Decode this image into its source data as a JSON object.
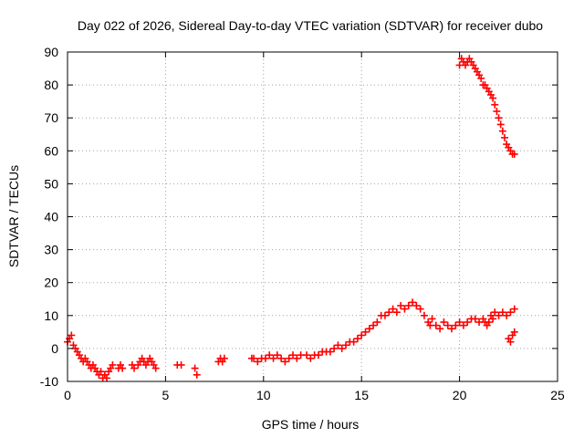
{
  "chart_data": {
    "type": "scatter",
    "title": "Day 022 of 2026, Sidereal Day-to-day VTEC variation (SDTVAR) for receiver dubo",
    "xlabel": "GPS time / hours",
    "ylabel": "SDTVAR / TECUs",
    "xlim": [
      0,
      25
    ],
    "ylim": [
      -10,
      90
    ],
    "xticks": [
      0,
      5,
      10,
      15,
      20,
      25
    ],
    "yticks": [
      -10,
      0,
      10,
      20,
      30,
      40,
      50,
      60,
      70,
      80,
      90
    ],
    "xtick_labels": [
      "0",
      "5",
      "10",
      "15",
      "20",
      "25"
    ],
    "ytick_labels": [
      "-10",
      "0",
      "10",
      "20",
      "30",
      "40",
      "50",
      "60",
      "70",
      "80",
      "90"
    ],
    "grid": true,
    "marker": "plus",
    "series_color": "#ff0000",
    "series": [
      {
        "name": "SDTVAR",
        "x": [
          0.0,
          0.1,
          0.2,
          0.3,
          0.4,
          0.5,
          0.6,
          0.7,
          0.8,
          0.9,
          1.0,
          1.1,
          1.2,
          1.3,
          1.4,
          1.5,
          1.6,
          1.7,
          1.8,
          1.9,
          2.0,
          2.1,
          2.2,
          2.3,
          2.6,
          2.7,
          2.8,
          3.3,
          3.4,
          3.6,
          3.7,
          3.8,
          3.9,
          4.0,
          4.1,
          4.2,
          4.3,
          4.4,
          4.5,
          5.6,
          5.8,
          6.5,
          6.6,
          7.7,
          7.8,
          7.9,
          8.0,
          9.4,
          9.5,
          9.7,
          9.9,
          10.1,
          10.3,
          10.5,
          10.7,
          10.9,
          11.1,
          11.3,
          11.5,
          11.7,
          11.9,
          12.2,
          12.4,
          12.6,
          12.8,
          13.0,
          13.2,
          13.4,
          13.6,
          13.8,
          14.0,
          14.2,
          14.4,
          14.6,
          14.8,
          15.0,
          15.2,
          15.4,
          15.6,
          15.8,
          16.0,
          16.2,
          16.4,
          16.6,
          16.8,
          17.0,
          17.2,
          17.4,
          17.6,
          17.8,
          18.0,
          18.2,
          18.4,
          18.5,
          18.6,
          18.8,
          19.0,
          19.2,
          19.4,
          19.6,
          19.8,
          20.0,
          20.2,
          20.4,
          20.6,
          20.8,
          21.0,
          21.2,
          21.3,
          21.4,
          21.5,
          21.6,
          21.7,
          21.8,
          22.0,
          22.2,
          22.4,
          22.6,
          22.8,
          22.5,
          22.6,
          22.7,
          22.8,
          20.0,
          20.1,
          20.2,
          20.3,
          20.4,
          20.5,
          20.6,
          20.7,
          20.8,
          20.9,
          21.0,
          21.1,
          21.2,
          21.3,
          21.4,
          21.5,
          21.6,
          21.7,
          21.8,
          21.9,
          22.0,
          22.1,
          22.2,
          22.3,
          22.4,
          22.5,
          22.6,
          22.7,
          22.8
        ],
        "y": [
          2,
          3,
          4,
          1,
          0,
          -1,
          -2,
          -3,
          -4,
          -3,
          -4,
          -5,
          -6,
          -5,
          -6,
          -7,
          -8,
          -7,
          -9,
          -8,
          -9,
          -7,
          -6,
          -5,
          -6,
          -5,
          -6,
          -5,
          -6,
          -5,
          -4,
          -3,
          -4,
          -5,
          -4,
          -3,
          -4,
          -5,
          -6,
          -5,
          -5,
          -6,
          -8,
          -4,
          -3,
          -4,
          -3,
          -3,
          -3,
          -4,
          -3,
          -3,
          -2,
          -3,
          -2,
          -3,
          -4,
          -3,
          -2,
          -3,
          -2,
          -2,
          -3,
          -2,
          -2,
          -1,
          -1,
          -1,
          0,
          1,
          0,
          1,
          2,
          2,
          3,
          4,
          5,
          6,
          7,
          8,
          10,
          10,
          11,
          12,
          11,
          13,
          12,
          13,
          14,
          13,
          12,
          10,
          8,
          7,
          9,
          7,
          6,
          8,
          7,
          6,
          7,
          8,
          7,
          8,
          9,
          9,
          8,
          9,
          8,
          7,
          8,
          10,
          9,
          11,
          10,
          11,
          10,
          11,
          12,
          3,
          2,
          4,
          5,
          86,
          88,
          87,
          86,
          87,
          88,
          87,
          86,
          85,
          84,
          83,
          82,
          80,
          80,
          79,
          78,
          77,
          76,
          74,
          72,
          70,
          68,
          66,
          64,
          62,
          61,
          60,
          59,
          59
        ]
      }
    ]
  }
}
